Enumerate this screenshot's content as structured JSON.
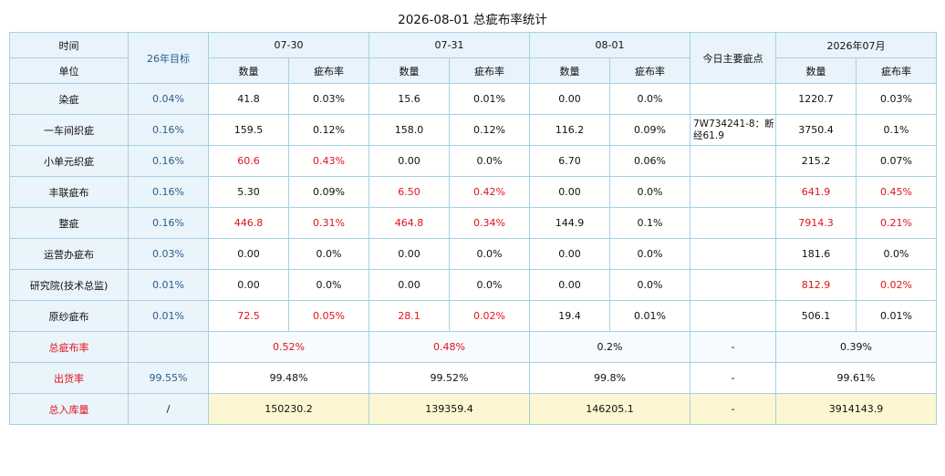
{
  "title": "2026-08-01 总疵布率统计",
  "header": {
    "time_label": "时间",
    "unit_label": "单位",
    "target_label": "26年目标",
    "dates": [
      "07-30",
      "07-31",
      "08-01"
    ],
    "main_defects_label": "今日主要疵点",
    "month_label": "2026年07月",
    "qty_label": "数量",
    "rate_label": "疵布率"
  },
  "rows": [
    {
      "name": "染疵",
      "target": "0.04%",
      "d1q": "41.8",
      "d1r": "0.03%",
      "d2q": "15.6",
      "d2r": "0.01%",
      "d3q": "0.00",
      "d3r": "0.0%",
      "note": "",
      "mq": "1220.7",
      "mr": "0.03%"
    },
    {
      "name": "一车间织疵",
      "target": "0.16%",
      "d1q": "159.5",
      "d1r": "0.12%",
      "d2q": "158.0",
      "d2r": "0.12%",
      "d3q": "116.2",
      "d3r": "0.09%",
      "note": "7W734241-8：断经61.9",
      "mq": "3750.4",
      "mr": "0.1%"
    },
    {
      "name": "小单元织疵",
      "target": "0.16%",
      "d1q": "60.6",
      "d1r": "0.43%",
      "d2q": "0.00",
      "d2r": "0.0%",
      "d3q": "6.70",
      "d3r": "0.06%",
      "note": "",
      "mq": "215.2",
      "mr": "0.07%"
    },
    {
      "name": "丰联疵布",
      "target": "0.16%",
      "d1q": "5.30",
      "d1r": "0.09%",
      "d2q": "6.50",
      "d2r": "0.42%",
      "d3q": "0.00",
      "d3r": "0.0%",
      "note": "",
      "mq": "641.9",
      "mr": "0.45%"
    },
    {
      "name": "整疵",
      "target": "0.16%",
      "d1q": "446.8",
      "d1r": "0.31%",
      "d2q": "464.8",
      "d2r": "0.34%",
      "d3q": "144.9",
      "d3r": "0.1%",
      "note": "",
      "mq": "7914.3",
      "mr": "0.21%"
    },
    {
      "name": "运营办疵布",
      "target": "0.03%",
      "d1q": "0.00",
      "d1r": "0.0%",
      "d2q": "0.00",
      "d2r": "0.0%",
      "d3q": "0.00",
      "d3r": "0.0%",
      "note": "",
      "mq": "181.6",
      "mr": "0.0%"
    },
    {
      "name": "研究院(技术总监)",
      "target": "0.01%",
      "d1q": "0.00",
      "d1r": "0.0%",
      "d2q": "0.00",
      "d2r": "0.0%",
      "d3q": "0.00",
      "d3r": "0.0%",
      "note": "",
      "mq": "812.9",
      "mr": "0.02%"
    },
    {
      "name": "原纱疵布",
      "target": "0.01%",
      "d1q": "72.5",
      "d1r": "0.05%",
      "d2q": "28.1",
      "d2r": "0.02%",
      "d3q": "19.4",
      "d3r": "0.01%",
      "note": "",
      "mq": "506.1",
      "mr": "0.01%"
    }
  ],
  "summary": [
    {
      "name": "总疵布率",
      "target": "",
      "d1": "0.52%",
      "d2": "0.48%",
      "d3": "0.2%",
      "note": "-",
      "month": "0.39%"
    },
    {
      "name": "出货率",
      "target": "99.55%",
      "d1": "99.48%",
      "d2": "99.52%",
      "d3": "99.8%",
      "note": "-",
      "month": "99.61%"
    },
    {
      "name": "总入库量",
      "target": "/",
      "d1": "150230.2",
      "d2": "139359.4",
      "d3": "146205.1",
      "note": "-",
      "month": "3914143.9"
    }
  ],
  "colors": {
    "highlight_red": "#e0131b",
    "header_bg": "#e8f3fb",
    "border": "#a8cfe4",
    "total_bg": "#fcf6d2",
    "target_text": "#2b5d86"
  }
}
